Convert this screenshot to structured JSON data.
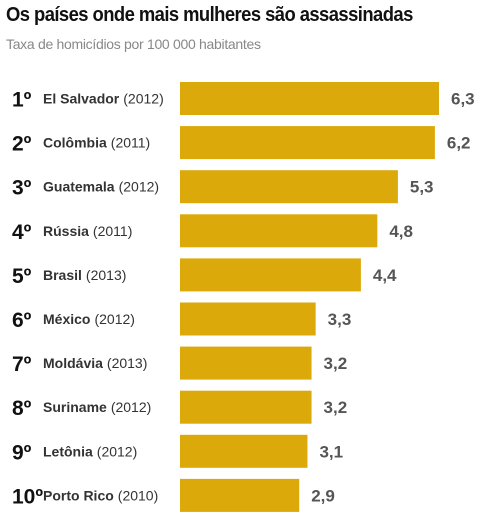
{
  "chart_data": {
    "type": "bar",
    "orientation": "horizontal",
    "title": "Os países onde mais mulheres são assassinadas",
    "subtitle": "Taxa de homicídios por 100 000 habitantes",
    "bar_color": "#DBA909",
    "ranks": [
      "1º",
      "2º",
      "3º",
      "4º",
      "5º",
      "6º",
      "7º",
      "8º",
      "9º",
      "10º"
    ],
    "categories": [
      "El Salvador",
      "Colômbia",
      "Guatemala",
      "Rússia",
      "Brasil",
      "México",
      "Moldávia",
      "Suriname",
      "Letônia",
      "Porto Rico"
    ],
    "years": [
      "(2012)",
      "(2011)",
      "(2012)",
      "(2011)",
      "(2013)",
      "(2012)",
      "(2013)",
      "(2012)",
      "(2012)",
      "(2010)"
    ],
    "values": [
      6.3,
      6.2,
      5.3,
      4.8,
      4.4,
      3.3,
      3.2,
      3.2,
      3.1,
      2.9
    ],
    "value_labels": [
      "6,3",
      "6,2",
      "5,3",
      "4,8",
      "4,4",
      "3,3",
      "3,2",
      "3,2",
      "3,1",
      "2,9"
    ],
    "xlim": [
      0,
      6.3
    ],
    "grid": false,
    "legend": "none"
  }
}
